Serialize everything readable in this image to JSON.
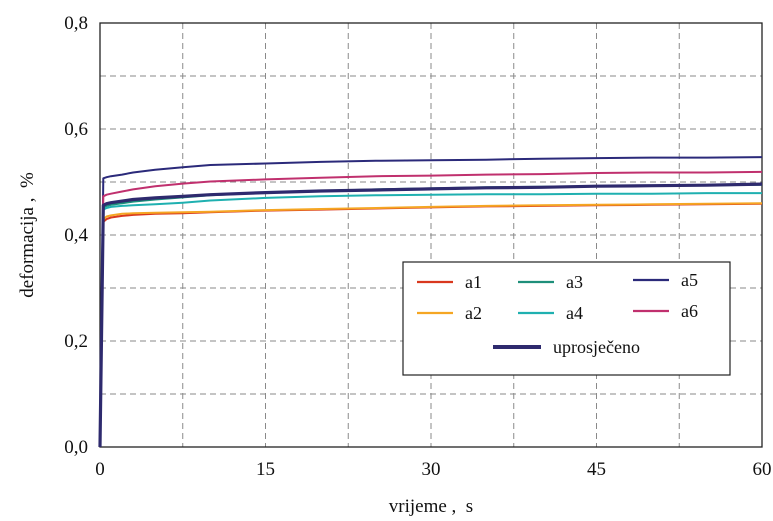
{
  "chart_data": {
    "type": "line",
    "title": "",
    "xlabel": "vrijeme ,  s",
    "ylabel": "deformacija ,  %",
    "xlim": [
      0,
      60
    ],
    "ylim": [
      0,
      0.8
    ],
    "x_ticks": [
      "0",
      "15",
      "30",
      "45",
      "60"
    ],
    "y_ticks": [
      "0,0",
      "0,2",
      "0,4",
      "0,6",
      "0,8"
    ],
    "grid": true,
    "legend_position": "lower-right",
    "series": [
      {
        "name": "a1",
        "color": "#d9381e",
        "x": [
          0,
          0.3,
          0.6,
          1,
          2,
          3,
          5,
          7.5,
          10,
          15,
          20,
          25,
          30,
          35,
          40,
          45,
          50,
          55,
          60
        ],
        "y": [
          0,
          0.425,
          0.43,
          0.433,
          0.436,
          0.438,
          0.44,
          0.441,
          0.443,
          0.446,
          0.448,
          0.45,
          0.452,
          0.454,
          0.455,
          0.456,
          0.457,
          0.458,
          0.459
        ]
      },
      {
        "name": "a2",
        "color": "#f5a623",
        "x": [
          0,
          0.3,
          0.6,
          1,
          2,
          3,
          5,
          7.5,
          10,
          15,
          20,
          25,
          30,
          35,
          40,
          45,
          50,
          55,
          60
        ],
        "y": [
          0,
          0.43,
          0.435,
          0.437,
          0.44,
          0.441,
          0.442,
          0.443,
          0.444,
          0.447,
          0.449,
          0.451,
          0.453,
          0.455,
          0.456,
          0.457,
          0.458,
          0.459,
          0.46
        ]
      },
      {
        "name": "a3",
        "color": "#1e8f7a",
        "x": [
          0,
          0.3,
          0.6,
          1,
          2,
          3,
          5,
          7.5,
          10,
          15,
          20,
          25,
          30,
          35,
          40,
          45,
          50,
          55,
          60
        ],
        "y": [
          0,
          0.452,
          0.455,
          0.457,
          0.46,
          0.463,
          0.467,
          0.471,
          0.475,
          0.48,
          0.483,
          0.486,
          0.488,
          0.49,
          0.491,
          0.492,
          0.493,
          0.494,
          0.495
        ]
      },
      {
        "name": "a4",
        "color": "#1fb0b0",
        "x": [
          0,
          0.3,
          0.6,
          1,
          2,
          3,
          5,
          7.5,
          10,
          15,
          20,
          25,
          30,
          35,
          40,
          45,
          50,
          55,
          60
        ],
        "y": [
          0,
          0.448,
          0.451,
          0.453,
          0.455,
          0.456,
          0.458,
          0.461,
          0.465,
          0.47,
          0.473,
          0.475,
          0.476,
          0.477,
          0.477,
          0.478,
          0.478,
          0.479,
          0.479
        ]
      },
      {
        "name": "a5",
        "color": "#2b2a7a",
        "x": [
          0,
          0.3,
          0.6,
          1,
          2,
          3,
          5,
          7.5,
          10,
          15,
          20,
          25,
          30,
          35,
          40,
          45,
          50,
          55,
          60
        ],
        "y": [
          0,
          0.507,
          0.509,
          0.511,
          0.514,
          0.518,
          0.523,
          0.528,
          0.532,
          0.535,
          0.538,
          0.54,
          0.541,
          0.542,
          0.544,
          0.545,
          0.546,
          0.546,
          0.547
        ]
      },
      {
        "name": "a6",
        "color": "#c0306e",
        "x": [
          0,
          0.3,
          0.6,
          1,
          2,
          3,
          5,
          7.5,
          10,
          15,
          20,
          25,
          30,
          35,
          40,
          45,
          50,
          55,
          60
        ],
        "y": [
          0,
          0.473,
          0.476,
          0.478,
          0.482,
          0.486,
          0.492,
          0.497,
          0.501,
          0.505,
          0.508,
          0.511,
          0.512,
          0.514,
          0.515,
          0.517,
          0.518,
          0.518,
          0.519
        ]
      },
      {
        "name": "uprosječeno",
        "color": "#2e2a6e",
        "bold": true,
        "x": [
          0,
          0.3,
          0.6,
          1,
          2,
          3,
          5,
          7.5,
          10,
          15,
          20,
          25,
          30,
          35,
          40,
          45,
          50,
          55,
          60
        ],
        "y": [
          0,
          0.456,
          0.459,
          0.461,
          0.464,
          0.467,
          0.47,
          0.473,
          0.476,
          0.48,
          0.483,
          0.485,
          0.487,
          0.489,
          0.49,
          0.492,
          0.493,
          0.494,
          0.496
        ]
      }
    ]
  }
}
